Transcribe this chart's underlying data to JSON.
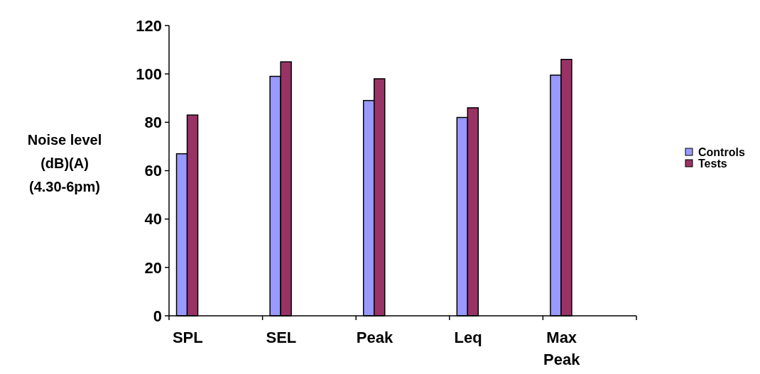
{
  "chart_data": {
    "type": "bar",
    "ylabel": "Noise level\n(dB)(A)\n(4.30-6pm)",
    "categories": [
      "SPL",
      "SEL",
      "Peak",
      "Leq",
      "Max Peak"
    ],
    "series": [
      {
        "name": "Controls",
        "color": "#9999ff",
        "values": [
          67,
          99,
          89,
          82,
          99.5
        ]
      },
      {
        "name": "Tests",
        "color": "#993366",
        "values": [
          83,
          105,
          98,
          86,
          106
        ]
      }
    ],
    "ylim": [
      0,
      120
    ],
    "yticks": [
      0,
      20,
      40,
      60,
      80,
      100,
      120
    ],
    "grid": false,
    "legend": "right"
  }
}
